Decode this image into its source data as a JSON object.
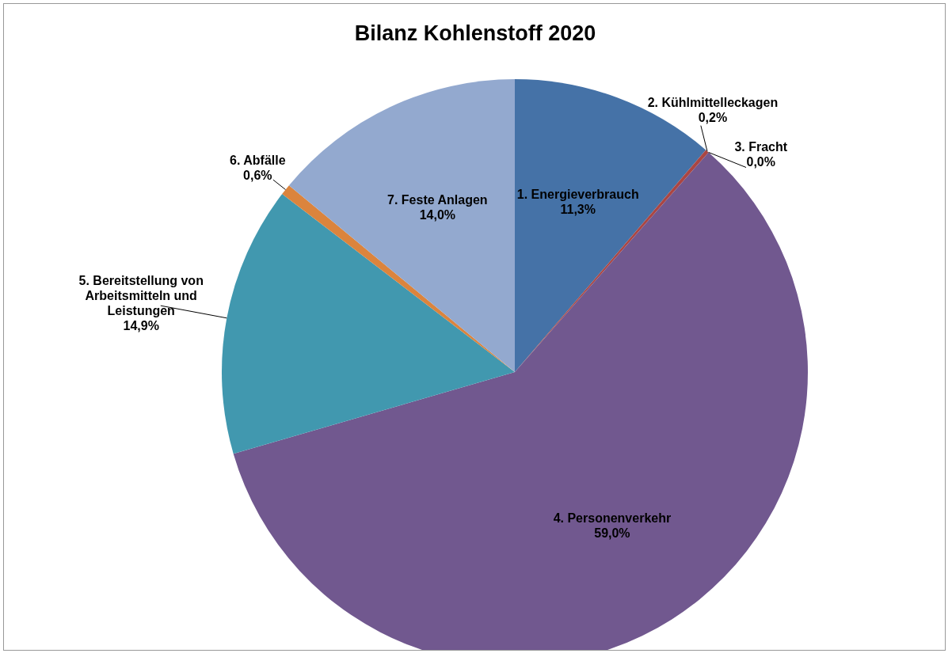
{
  "chart_data": {
    "type": "pie",
    "title": "Bilanz Kohlenstoff 2020",
    "categories": [
      "1. Energieverbrauch",
      "2. Kühlmittelleckagen",
      "3. Fracht",
      "4. Personenverkehr",
      "5. Bereitstellung von Arbeitsmitteln und Leistungen",
      "6. Abfälle",
      "7. Feste Anlagen"
    ],
    "values": [
      11.3,
      0.2,
      0.0,
      59.0,
      14.9,
      0.6,
      14.0
    ],
    "value_labels": [
      "11,3%",
      "0,2%",
      "0,0%",
      "59,0%",
      "14,9%",
      "0,6%",
      "14,0%"
    ],
    "colors": [
      "#4572a7",
      "#aa4643",
      "#89a54e",
      "#71588f",
      "#4198af",
      "#db843d",
      "#93a9cf"
    ],
    "legend": false
  }
}
